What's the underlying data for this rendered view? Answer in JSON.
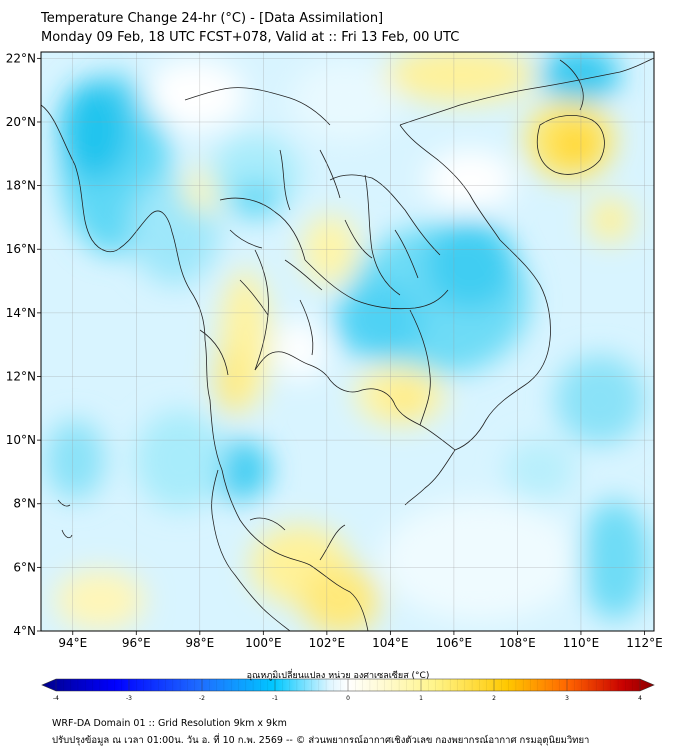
{
  "header": {
    "title_line1": "Temperature Change 24-hr (°C) - [Data Assimilation]",
    "title_line2": "Monday 09 Feb, 18 UTC FCST+078, Valid at :: Fri 13 Feb, 00 UTC"
  },
  "map": {
    "lon_range": [
      93,
      112.3
    ],
    "lat_range": [
      4,
      22.2
    ],
    "x_ticks": [
      {
        "value": 94,
        "label": "94°E"
      },
      {
        "value": 96,
        "label": "96°E"
      },
      {
        "value": 98,
        "label": "98°E"
      },
      {
        "value": 100,
        "label": "100°E"
      },
      {
        "value": 102,
        "label": "102°E"
      },
      {
        "value": 104,
        "label": "104°E"
      },
      {
        "value": 106,
        "label": "106°E"
      },
      {
        "value": 108,
        "label": "108°E"
      },
      {
        "value": 110,
        "label": "110°E"
      },
      {
        "value": 112,
        "label": "112°E"
      }
    ],
    "y_ticks": [
      {
        "value": 4,
        "label": "4°N"
      },
      {
        "value": 6,
        "label": "6°N"
      },
      {
        "value": 8,
        "label": "8°N"
      },
      {
        "value": 10,
        "label": "10°N"
      },
      {
        "value": 12,
        "label": "12°N"
      },
      {
        "value": 14,
        "label": "14°N"
      },
      {
        "value": 16,
        "label": "16°N"
      },
      {
        "value": 18,
        "label": "18°N"
      },
      {
        "value": 20,
        "label": "20°N"
      },
      {
        "value": 22,
        "label": "22°N"
      }
    ],
    "gridlines": true
  },
  "colorbar": {
    "title": "อุณหภูมิเปลี่ยนแปลง หน่วย องศาเซลเซียส (°C)",
    "min": -4,
    "max": 4,
    "tick_labels": [
      "-4",
      "-3",
      "-2",
      "-1",
      "0",
      "1",
      "2",
      "3",
      "4"
    ],
    "colors": [
      "#00008b",
      "#0000ff",
      "#1e6eff",
      "#00c8ff",
      "#ffffff",
      "#fff58c",
      "#ffc800",
      "#ff6400",
      "#c80000",
      "#8b0000"
    ]
  },
  "footer": {
    "line1": "WRF-DA Domain 01 :: Grid Resolution 9km x 9km",
    "line2": "ปรับปรุงข้อมูล ณ เวลา 01:00น. วัน อ. ที่ 10 ก.พ. 2569 -- © ส่วนพยากรณ์อากาศเชิงตัวเลข กองพยากรณ์อากาศ กรมอุตุนิยมวิทยา"
  }
}
